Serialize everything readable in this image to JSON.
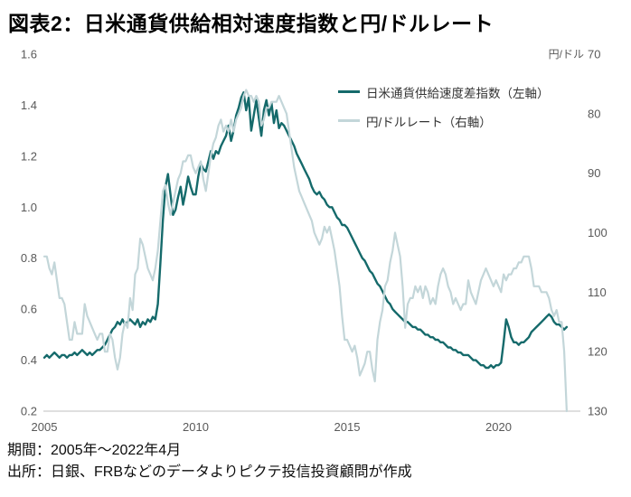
{
  "title": "図表2：日米通貨供給相対速度指数と円/ドルレート",
  "footer": {
    "period": "期間：2005年～2022年4月",
    "source": "出所：日銀、FRBなどのデータよりピクテ投信投資顧問が作成"
  },
  "colors": {
    "index_line": "#156a6b",
    "fx_line": "#c3d6d9",
    "axis_text": "#595959",
    "axis_line": "#cccccc",
    "title_text": "#000000"
  },
  "legend": {
    "items": [
      {
        "label": "日米通貨供給速度差指数（左軸）",
        "color_key": "index_line"
      },
      {
        "label": "円/ドルレート（右軸）",
        "color_key": "fx_line"
      }
    ]
  },
  "chart_data": {
    "type": "line",
    "title": "図表2：日米通貨供給相対速度指数と円/ドルレート",
    "xlabel": "",
    "ylabel_left": "",
    "ylabel_right": "円/ドル",
    "x_start": 2005.0,
    "x_step_months": 1,
    "x_end_label": "2022年4月",
    "x_ticks": [
      "2005",
      "2010",
      "2015",
      "2020"
    ],
    "grid": false,
    "legend_position": "inside-top-right",
    "left_axis": {
      "ticks": [
        "1.6",
        "1.4",
        "1.2",
        "1.0",
        "0.8",
        "0.6",
        "0.4",
        "0.2"
      ],
      "range": [
        0.2,
        1.6
      ],
      "inverted": false
    },
    "right_axis": {
      "unit": "円/ドル",
      "ticks": [
        "70",
        "80",
        "90",
        "100",
        "110",
        "120",
        "130"
      ],
      "range": [
        70,
        130
      ],
      "inverted": true
    },
    "series": [
      {
        "name": "日米通貨供給速度差指数（左軸）",
        "axis": "left",
        "color_key": "index_line",
        "values": [
          0.41,
          0.42,
          0.41,
          0.42,
          0.43,
          0.42,
          0.41,
          0.42,
          0.42,
          0.41,
          0.42,
          0.42,
          0.43,
          0.42,
          0.43,
          0.44,
          0.43,
          0.42,
          0.43,
          0.42,
          0.43,
          0.44,
          0.44,
          0.45,
          0.46,
          0.48,
          0.5,
          0.52,
          0.53,
          0.55,
          0.54,
          0.56,
          0.54,
          0.55,
          0.56,
          0.55,
          0.54,
          0.56,
          0.53,
          0.55,
          0.54,
          0.56,
          0.55,
          0.57,
          0.56,
          0.62,
          0.78,
          0.95,
          1.08,
          1.13,
          1.05,
          0.97,
          0.99,
          1.04,
          1.08,
          1.01,
          1.06,
          1.12,
          1.08,
          1.05,
          1.05,
          1.12,
          1.17,
          1.15,
          1.14,
          1.18,
          1.22,
          1.19,
          1.22,
          1.21,
          1.24,
          1.26,
          1.28,
          1.32,
          1.26,
          1.3,
          1.36,
          1.39,
          1.43,
          1.45,
          1.38,
          1.43,
          1.3,
          1.36,
          1.42,
          1.35,
          1.28,
          1.38,
          1.42,
          1.36,
          1.41,
          1.33,
          1.38,
          1.31,
          1.33,
          1.32,
          1.3,
          1.28,
          1.26,
          1.24,
          1.21,
          1.19,
          1.17,
          1.15,
          1.13,
          1.11,
          1.08,
          1.06,
          1.05,
          1.06,
          1.04,
          1.03,
          1.01,
          1.0,
          1.0,
          0.98,
          0.96,
          0.95,
          0.93,
          0.93,
          0.92,
          0.9,
          0.88,
          0.86,
          0.84,
          0.82,
          0.8,
          0.79,
          0.77,
          0.75,
          0.74,
          0.72,
          0.7,
          0.69,
          0.67,
          0.65,
          0.63,
          0.62,
          0.6,
          0.59,
          0.58,
          0.57,
          0.56,
          0.55,
          0.55,
          0.54,
          0.53,
          0.53,
          0.52,
          0.52,
          0.51,
          0.5,
          0.5,
          0.49,
          0.49,
          0.48,
          0.48,
          0.47,
          0.47,
          0.46,
          0.45,
          0.45,
          0.44,
          0.44,
          0.43,
          0.43,
          0.42,
          0.42,
          0.42,
          0.41,
          0.4,
          0.4,
          0.39,
          0.38,
          0.38,
          0.37,
          0.37,
          0.38,
          0.37,
          0.38,
          0.38,
          0.39,
          0.47,
          0.56,
          0.53,
          0.49,
          0.47,
          0.47,
          0.46,
          0.47,
          0.47,
          0.48,
          0.49,
          0.51,
          0.52,
          0.53,
          0.54,
          0.55,
          0.56,
          0.57,
          0.58,
          0.57,
          0.55,
          0.54,
          0.54,
          0.53,
          0.52,
          0.53
        ]
      },
      {
        "name": "円/ドルレート（右軸）",
        "axis": "right",
        "color_key": "fx_line",
        "values": [
          104,
          104,
          106,
          107,
          105,
          108,
          111,
          111,
          112,
          115,
          118,
          118,
          115,
          117,
          117,
          117,
          112,
          114,
          115,
          116,
          117,
          118,
          117,
          117,
          120,
          120,
          117,
          118,
          121,
          123,
          121,
          117,
          115,
          116,
          111,
          113,
          107,
          106,
          101,
          102,
          104,
          106,
          107,
          108,
          106,
          103,
          98,
          93,
          92,
          95,
          97,
          95,
          93,
          91,
          90,
          88,
          88,
          87,
          87,
          89,
          90,
          89,
          88,
          91,
          93,
          90,
          87,
          85,
          84,
          82,
          81,
          83,
          82,
          83,
          81,
          83,
          81,
          80,
          79,
          77,
          76,
          77,
          77,
          78,
          77,
          78,
          82,
          81,
          79,
          79,
          78,
          78,
          78,
          77,
          78,
          79,
          80,
          83,
          86,
          89,
          91,
          93,
          94,
          95,
          96,
          97,
          98,
          100,
          101,
          102,
          101,
          99,
          100,
          99,
          101,
          103,
          106,
          109,
          114,
          118,
          118,
          119,
          120,
          119,
          121,
          124,
          123,
          122,
          120,
          120,
          123,
          125,
          118,
          115,
          113,
          109,
          108,
          105,
          103,
          100,
          102,
          104,
          109,
          116,
          112,
          111,
          111,
          109,
          110,
          109,
          111,
          109,
          110,
          112,
          111,
          112,
          109,
          107,
          106,
          107,
          109,
          110,
          112,
          111,
          112,
          113,
          112,
          112,
          108,
          110,
          111,
          112,
          110,
          108,
          107,
          106,
          107,
          108,
          109,
          108,
          109,
          110,
          107,
          108,
          107,
          107,
          106,
          106,
          105,
          105,
          104,
          104,
          104,
          106,
          109,
          109,
          109,
          110,
          110,
          110,
          111,
          113,
          114,
          113,
          115,
          115,
          120,
          130
        ]
      }
    ]
  }
}
